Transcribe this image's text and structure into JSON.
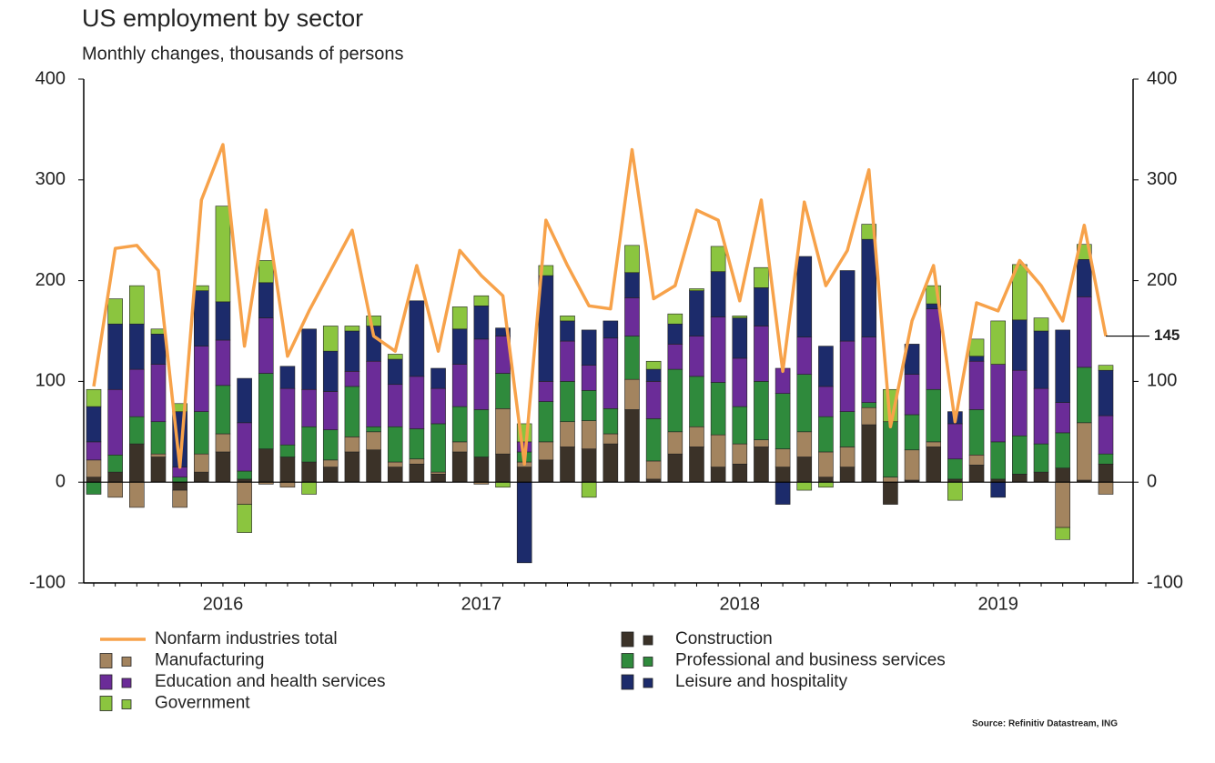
{
  "chart_data": {
    "type": "bar",
    "title": "US employment by sector",
    "subtitle": "Monthly changes, thousands of persons",
    "source": "Source: Refinitiv Datastream, ING",
    "categories": [
      null,
      null,
      null,
      null,
      null,
      null,
      "2016",
      null,
      null,
      null,
      null,
      null,
      null,
      null,
      null,
      null,
      null,
      null,
      "2017",
      null,
      null,
      null,
      null,
      null,
      null,
      null,
      null,
      null,
      null,
      null,
      "2018",
      null,
      null,
      null,
      null,
      null,
      null,
      null,
      null,
      null,
      null,
      null,
      "2019",
      null,
      null,
      null,
      null,
      null
    ],
    "stacked": true,
    "ylim": [
      -100,
      400
    ],
    "yticks": [
      -100,
      0,
      100,
      200,
      300,
      400
    ],
    "y2lim": [
      -100,
      400
    ],
    "y2ticks": [
      -100,
      0,
      100,
      200,
      300,
      400
    ],
    "series": [
      {
        "name": "Nonfarm industries total",
        "type": "line",
        "color": "#f7a24a",
        "values": [
          95,
          232,
          235,
          210,
          15,
          280,
          335,
          135,
          270,
          125,
          170,
          210,
          250,
          145,
          130,
          215,
          130,
          230,
          205,
          185,
          18,
          260,
          215,
          175,
          172,
          330,
          182,
          195,
          270,
          260,
          180,
          280,
          110,
          278,
          195,
          230,
          310,
          55,
          160,
          215,
          60,
          178,
          170,
          220,
          195,
          160,
          255,
          145
        ]
      },
      {
        "name": "Construction",
        "color": "#3b3228",
        "values": [
          5,
          10,
          38,
          25,
          -8,
          10,
          30,
          3,
          33,
          25,
          20,
          15,
          30,
          32,
          15,
          18,
          8,
          30,
          25,
          28,
          15,
          22,
          35,
          33,
          38,
          72,
          3,
          28,
          35,
          15,
          18,
          35,
          15,
          25,
          5,
          15,
          57,
          -22,
          2,
          35,
          3,
          17,
          3,
          8,
          10,
          14,
          2,
          18
        ]
      },
      {
        "name": "Manufacturing",
        "color": "#a3845f",
        "values": [
          17,
          -15,
          -25,
          3,
          -17,
          18,
          18,
          -22,
          -2,
          -5,
          0,
          7,
          15,
          18,
          5,
          5,
          2,
          10,
          -2,
          45,
          5,
          18,
          25,
          28,
          10,
          30,
          18,
          22,
          20,
          32,
          20,
          7,
          18,
          25,
          25,
          20,
          17,
          5,
          30,
          5,
          0,
          10,
          0,
          0,
          0,
          -45,
          57,
          -12
        ]
      },
      {
        "name": "Professional and business services",
        "color": "#2f8a3c",
        "values": [
          -12,
          17,
          27,
          32,
          5,
          42,
          48,
          8,
          75,
          12,
          35,
          30,
          50,
          5,
          35,
          30,
          48,
          35,
          47,
          35,
          10,
          40,
          40,
          30,
          25,
          43,
          42,
          62,
          50,
          52,
          37,
          58,
          55,
          57,
          35,
          35,
          5,
          55,
          35,
          52,
          20,
          45,
          37,
          38,
          28,
          35,
          55,
          10
        ]
      },
      {
        "name": "Education and health services",
        "color": "#6b2c98",
        "values": [
          18,
          65,
          47,
          57,
          10,
          65,
          45,
          48,
          55,
          56,
          37,
          38,
          15,
          65,
          42,
          52,
          35,
          42,
          70,
          37,
          10,
          20,
          40,
          25,
          70,
          38,
          37,
          25,
          40,
          65,
          48,
          55,
          25,
          37,
          30,
          70,
          65,
          0,
          40,
          80,
          35,
          48,
          77,
          65,
          55,
          30,
          70,
          38
        ]
      },
      {
        "name": "Leisure and hospitality",
        "color": "#1c2b6b",
        "values": [
          35,
          65,
          45,
          30,
          55,
          55,
          38,
          44,
          35,
          22,
          60,
          40,
          40,
          35,
          25,
          75,
          20,
          35,
          33,
          8,
          -80,
          105,
          20,
          35,
          17,
          25,
          12,
          20,
          45,
          45,
          40,
          38,
          -22,
          80,
          40,
          70,
          97,
          0,
          30,
          5,
          12,
          5,
          -15,
          50,
          57,
          72,
          37,
          45
        ]
      },
      {
        "name": "Government",
        "color": "#8bc53f",
        "values": [
          17,
          25,
          38,
          5,
          8,
          5,
          95,
          -28,
          22,
          0,
          -12,
          25,
          5,
          10,
          5,
          0,
          0,
          22,
          10,
          -5,
          18,
          10,
          5,
          -15,
          0,
          27,
          8,
          10,
          2,
          25,
          2,
          20,
          0,
          -8,
          -5,
          0,
          15,
          32,
          0,
          18,
          -18,
          17,
          43,
          55,
          13,
          -12,
          15,
          5
        ]
      }
    ]
  }
}
